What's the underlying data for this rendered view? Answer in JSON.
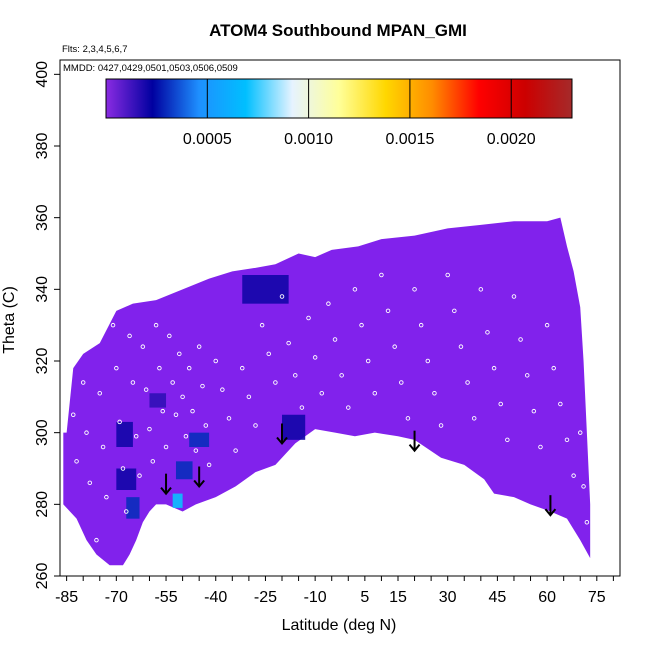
{
  "chart_data": {
    "type": "heatmap",
    "title": "ATOM4 Southbound MPAN_GMI",
    "annotations": [
      "Flts: 2,3,4,5,6,7",
      "MMDD: 0427,0429,0501,0503,0506,0509"
    ],
    "xlabel": "Latitude (deg N)",
    "ylabel": "Theta (C)",
    "xlim": [
      -87,
      82
    ],
    "ylim": [
      260,
      404
    ],
    "x_ticks": [
      -85,
      -70,
      -55,
      -40,
      -25,
      -10,
      5,
      15,
      30,
      45,
      60,
      75
    ],
    "y_ticks": [
      260,
      280,
      300,
      320,
      340,
      360,
      380,
      400
    ],
    "colorbar": {
      "min": 0,
      "max": 0.0023,
      "ticks": [
        "0.0005",
        "0.0010",
        "0.0015",
        "0.0020"
      ],
      "tick_values": [
        0.0005,
        0.001,
        0.0015,
        0.002
      ],
      "colors": [
        "#8a2be2",
        "#0000a0",
        "#1e90ff",
        "#00bfff",
        "#e6f3ff",
        "#ffff99",
        "#ffd700",
        "#ff8c00",
        "#ff0000",
        "#cc0000",
        "#a52a2a"
      ]
    },
    "field": {
      "background_value": 5e-05,
      "background_color": "#8122ec",
      "upper_boundary": [
        [
          -85,
          300
        ],
        [
          -83,
          318
        ],
        [
          -80,
          322
        ],
        [
          -75,
          325
        ],
        [
          -70,
          334
        ],
        [
          -65,
          336
        ],
        [
          -58,
          337
        ],
        [
          -50,
          340
        ],
        [
          -42,
          343
        ],
        [
          -35,
          345
        ],
        [
          -28,
          346
        ],
        [
          -22,
          347
        ],
        [
          -15,
          350
        ],
        [
          -10,
          349
        ],
        [
          -5,
          351
        ],
        [
          3,
          352
        ],
        [
          10,
          354
        ],
        [
          20,
          355
        ],
        [
          30,
          357
        ],
        [
          40,
          358
        ],
        [
          50,
          359
        ],
        [
          60,
          359
        ],
        [
          64,
          360
        ],
        [
          66,
          352
        ],
        [
          68,
          345
        ],
        [
          70,
          335
        ],
        [
          71,
          320
        ],
        [
          72,
          300
        ],
        [
          73,
          280
        ],
        [
          73,
          265
        ]
      ],
      "lower_boundary": [
        [
          73,
          265
        ],
        [
          70,
          270
        ],
        [
          66,
          276
        ],
        [
          61,
          278
        ],
        [
          55,
          280
        ],
        [
          50,
          282
        ],
        [
          44,
          283
        ],
        [
          41,
          287
        ],
        [
          35,
          291
        ],
        [
          28,
          293
        ],
        [
          20,
          298
        ],
        [
          15,
          299
        ],
        [
          8,
          300
        ],
        [
          2,
          299
        ],
        [
          -4,
          300
        ],
        [
          -10,
          301
        ],
        [
          -16,
          297
        ],
        [
          -22,
          291
        ],
        [
          -28,
          289
        ],
        [
          -34,
          285
        ],
        [
          -40,
          282
        ],
        [
          -46,
          280
        ],
        [
          -50,
          278
        ],
        [
          -55,
          280
        ],
        [
          -58,
          280
        ],
        [
          -60,
          278
        ],
        [
          -62,
          275
        ],
        [
          -64,
          270
        ],
        [
          -66,
          266
        ],
        [
          -68,
          263
        ],
        [
          -72,
          263
        ],
        [
          -76,
          266
        ],
        [
          -79,
          270
        ],
        [
          -82,
          276
        ],
        [
          -86,
          280
        ],
        [
          -86,
          300
        ]
      ],
      "patches": [
        {
          "x": [
            -70,
            -65
          ],
          "y": [
            296,
            303
          ],
          "value": 0.0002
        },
        {
          "x": [
            -70,
            -64
          ],
          "y": [
            284,
            290
          ],
          "value": 0.0002
        },
        {
          "x": [
            -67,
            -63
          ],
          "y": [
            276,
            282
          ],
          "value": 0.0003
        },
        {
          "x": [
            -48,
            -42
          ],
          "y": [
            296,
            300
          ],
          "value": 0.0003
        },
        {
          "x": [
            -52,
            -47
          ],
          "y": [
            287,
            292
          ],
          "value": 0.0003
        },
        {
          "x": [
            -53,
            -50
          ],
          "y": [
            279,
            283
          ],
          "value": 0.0007
        },
        {
          "x": [
            -32,
            -18
          ],
          "y": [
            336,
            344
          ],
          "value": 0.0002
        },
        {
          "x": [
            -20,
            -13
          ],
          "y": [
            298,
            305
          ],
          "value": 0.0002
        },
        {
          "x": [
            -60,
            -55
          ],
          "y": [
            307,
            311
          ],
          "value": 0.00015
        }
      ]
    },
    "arrows_at_latitude": [
      [
        -55,
        288
      ],
      [
        -45,
        290
      ],
      [
        -20,
        302
      ],
      [
        20,
        300
      ],
      [
        61,
        282
      ]
    ],
    "sample_points": [
      [
        -84,
        316
      ],
      [
        -83,
        305
      ],
      [
        -82,
        292
      ],
      [
        -80,
        314
      ],
      [
        -79,
        300
      ],
      [
        -78,
        286
      ],
      [
        -76,
        270
      ],
      [
        -75,
        311
      ],
      [
        -74,
        296
      ],
      [
        -73,
        282
      ],
      [
        -71,
        330
      ],
      [
        -70,
        318
      ],
      [
        -69,
        303
      ],
      [
        -68,
        290
      ],
      [
        -67,
        278
      ],
      [
        -66,
        327
      ],
      [
        -65,
        314
      ],
      [
        -64,
        299
      ],
      [
        -63,
        288
      ],
      [
        -62,
        324
      ],
      [
        -61,
        312
      ],
      [
        -60,
        301
      ],
      [
        -59,
        292
      ],
      [
        -58,
        330
      ],
      [
        -57,
        318
      ],
      [
        -56,
        306
      ],
      [
        -55,
        296
      ],
      [
        -54,
        327
      ],
      [
        -53,
        314
      ],
      [
        -52,
        305
      ],
      [
        -51,
        322
      ],
      [
        -50,
        310
      ],
      [
        -49,
        299
      ],
      [
        -48,
        318
      ],
      [
        -47,
        306
      ],
      [
        -46,
        295
      ],
      [
        -45,
        324
      ],
      [
        -44,
        313
      ],
      [
        -43,
        302
      ],
      [
        -42,
        291
      ],
      [
        -40,
        320
      ],
      [
        -38,
        312
      ],
      [
        -36,
        304
      ],
      [
        -34,
        295
      ],
      [
        -32,
        318
      ],
      [
        -30,
        310
      ],
      [
        -28,
        302
      ],
      [
        -26,
        330
      ],
      [
        -24,
        322
      ],
      [
        -22,
        314
      ],
      [
        -20,
        338
      ],
      [
        -18,
        325
      ],
      [
        -16,
        316
      ],
      [
        -14,
        307
      ],
      [
        -12,
        332
      ],
      [
        -10,
        321
      ],
      [
        -8,
        311
      ],
      [
        -6,
        336
      ],
      [
        -4,
        326
      ],
      [
        -2,
        316
      ],
      [
        0,
        307
      ],
      [
        2,
        340
      ],
      [
        4,
        330
      ],
      [
        6,
        320
      ],
      [
        8,
        311
      ],
      [
        10,
        344
      ],
      [
        12,
        334
      ],
      [
        14,
        324
      ],
      [
        16,
        314
      ],
      [
        18,
        304
      ],
      [
        20,
        340
      ],
      [
        22,
        330
      ],
      [
        24,
        320
      ],
      [
        26,
        311
      ],
      [
        28,
        302
      ],
      [
        30,
        344
      ],
      [
        32,
        334
      ],
      [
        34,
        324
      ],
      [
        36,
        314
      ],
      [
        38,
        304
      ],
      [
        40,
        340
      ],
      [
        42,
        328
      ],
      [
        44,
        318
      ],
      [
        46,
        308
      ],
      [
        48,
        298
      ],
      [
        50,
        338
      ],
      [
        52,
        326
      ],
      [
        54,
        316
      ],
      [
        56,
        306
      ],
      [
        58,
        296
      ],
      [
        60,
        330
      ],
      [
        62,
        318
      ],
      [
        64,
        308
      ],
      [
        66,
        298
      ],
      [
        68,
        288
      ],
      [
        70,
        300
      ],
      [
        71,
        285
      ],
      [
        72,
        275
      ]
    ]
  }
}
